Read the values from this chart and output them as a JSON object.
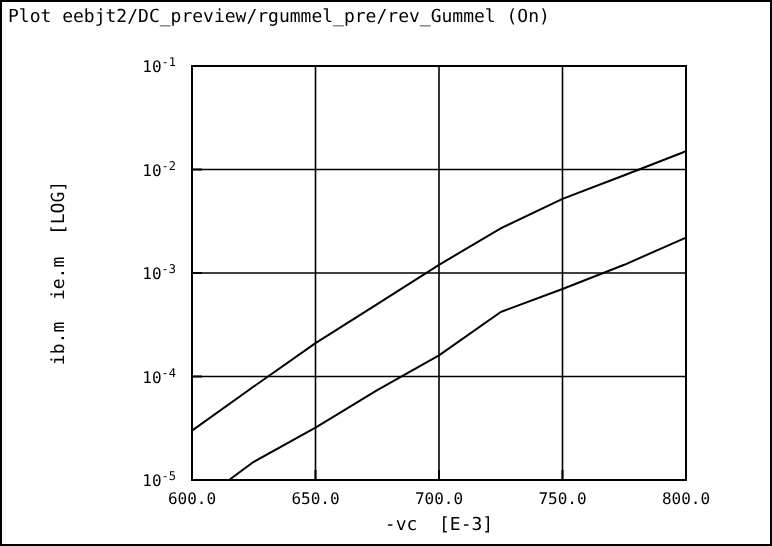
{
  "chart_data": {
    "type": "line",
    "title": "Plot eebjt2/DC_preview/rgummel_pre/rev_Gummel (On)",
    "xlabel": "-vc  [E-3]",
    "ylabel": "ib.m  ie.m  [LOG]",
    "log": "y",
    "grid": true,
    "marker": "none",
    "line_style": "solid",
    "xlim": [
      600,
      800
    ],
    "ylim": [
      1e-05,
      0.1
    ],
    "xticks": [
      {
        "value": 600,
        "label": "600.0"
      },
      {
        "value": 650,
        "label": "650.0"
      },
      {
        "value": 700,
        "label": "700.0"
      },
      {
        "value": 750,
        "label": "750.0"
      },
      {
        "value": 800,
        "label": "800.0"
      }
    ],
    "yticks": [
      {
        "value": 1e-05,
        "label": "10$^{-5}$"
      },
      {
        "value": 0.0001,
        "label": "10$^{-4}$"
      },
      {
        "value": 0.001,
        "label": "10$^{-3}$"
      },
      {
        "value": 0.01,
        "label": "10$^{-2}$"
      },
      {
        "value": 0.1,
        "label": "10$^{-1}$"
      }
    ],
    "series": [
      {
        "color": "#000000",
        "x": [
          600,
          625,
          650,
          675,
          700,
          725,
          750,
          775,
          800
        ],
        "values": [
          3e-05,
          8e-05,
          0.00021,
          0.0005,
          0.0012,
          0.0027,
          0.0052,
          0.0088,
          0.015
        ]
      },
      {
        "color": "#000000",
        "x": [
          615,
          625,
          650,
          675,
          700,
          725,
          750,
          775,
          800
        ],
        "values": [
          1e-05,
          1.5e-05,
          3.2e-05,
          7.4e-05,
          0.00016,
          0.00042,
          0.0007,
          0.0012,
          0.0022
        ]
      }
    ]
  }
}
